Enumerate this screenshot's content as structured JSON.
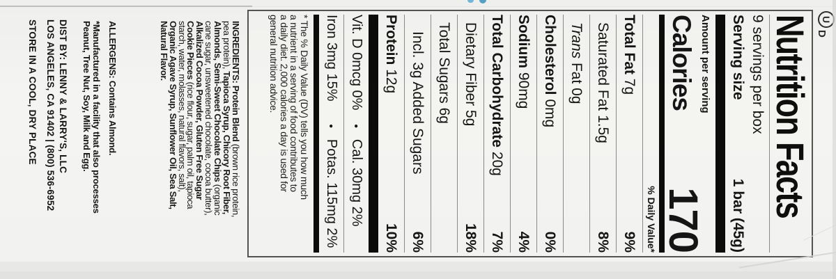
{
  "kosher": {
    "u": "U",
    "d": "D"
  },
  "panel": {
    "title": "Nutrition Facts",
    "servings": "9 servings per box",
    "serving_size_label": "Serving size",
    "serving_size_value": "1 bar (45g)",
    "amount_label": "Amount per serving",
    "calories_label": "Calories",
    "calories_value": "170",
    "dv_header": "% Daily Value*",
    "bullet": "•",
    "rows": [
      {
        "key": "total-fat",
        "indent": 0,
        "segments": [
          {
            "t": "Total Fat ",
            "b": true
          },
          {
            "t": "7g"
          }
        ],
        "dv": "9%"
      },
      {
        "key": "saturated-fat",
        "indent": 1,
        "segments": [
          {
            "t": "Saturated Fat 1.5g"
          }
        ],
        "dv": "8%"
      },
      {
        "key": "trans-fat",
        "indent": 1,
        "segments": [
          {
            "t": "Trans",
            "i": true
          },
          {
            "t": " Fat 0g"
          }
        ],
        "dv": ""
      },
      {
        "key": "cholesterol",
        "indent": 0,
        "segments": [
          {
            "t": "Cholesterol ",
            "b": true
          },
          {
            "t": "0mg"
          }
        ],
        "dv": "0%"
      },
      {
        "key": "sodium",
        "indent": 0,
        "segments": [
          {
            "t": "Sodium ",
            "b": true
          },
          {
            "t": "90mg"
          }
        ],
        "dv": "4%"
      },
      {
        "key": "total-carbohydrate",
        "indent": 0,
        "segments": [
          {
            "t": "Total Carbohydrate ",
            "b": true
          },
          {
            "t": "20g"
          }
        ],
        "dv": "7%"
      },
      {
        "key": "dietary-fiber",
        "indent": 1,
        "segments": [
          {
            "t": "Dietary Fiber 5g"
          }
        ],
        "dv": "18%"
      },
      {
        "key": "total-sugars",
        "indent": 1,
        "segments": [
          {
            "t": "Total Sugars 6g"
          }
        ],
        "dv": ""
      },
      {
        "key": "added-sugars",
        "indent": 2,
        "segments": [
          {
            "t": "Incl. 3g Added Sugars"
          }
        ],
        "dv": "6%"
      },
      {
        "key": "protein",
        "indent": 0,
        "segments": [
          {
            "t": "Protein ",
            "b": true
          },
          {
            "t": "12g"
          }
        ],
        "dv": "10%"
      }
    ],
    "micros": [
      {
        "left": "Vit. D 0mcg 0%",
        "right": "Cal. 30mg 2%"
      },
      {
        "left": "Iron 3mg 15%",
        "right": "Potas. 115mg 2%"
      }
    ],
    "footnote_lines": [
      "* The % Daily Value (DV) tells you how much",
      "a nutrient in a serving of food contributes to",
      "a daily diet. 2,000 calories a day is used for",
      "general nutrition advice."
    ]
  },
  "ingredients": {
    "lines": [
      [
        {
          "t": "INGREDIENTS: Protein Blend",
          "b": true
        },
        {
          "t": " (brown rice protein,"
        }
      ],
      [
        {
          "t": "pea protein), "
        },
        {
          "t": "Tapioca Syrup, Chicory Root Fiber,",
          "b": true
        }
      ],
      [
        {
          "t": "Almonds, Semi-Sweet Chocolate Chips",
          "b": true
        },
        {
          "t": " (organic"
        }
      ],
      [
        {
          "t": "cane sugar, unsweetened chocolate, cocoa butter),"
        }
      ],
      [
        {
          "t": "Alkalized Cocoa Powder, Gluten Free Sugar",
          "b": true
        }
      ],
      [
        {
          "t": "Cookie Pieces",
          "b": true
        },
        {
          "t": " (rice flour, sugar, palm oil, tapioca"
        }
      ],
      [
        {
          "t": "starch, water, molasses, natural flavors, salt),"
        }
      ],
      [
        {
          "t": "Organic Agave Syrup, Sunflower Oil, Sea Salt,",
          "b": true
        }
      ],
      [
        {
          "t": "Natural Flavor.",
          "b": true
        }
      ]
    ]
  },
  "allergens": {
    "text": "ALLERGENS: Contains Almond."
  },
  "facility": {
    "lines": [
      "*Manufactured in a facility that also processes",
      "Peanut, Tree Nut, Soy, Milk and Egg."
    ]
  },
  "distributor": {
    "lines": [
      "DIST BY: LENNY & LARRY'S, LLC",
      "LOS ANGELES, CA  91402  |  (800) 536-6952"
    ]
  },
  "storage": {
    "text": "STORE IN A COOL, DRY PLACE"
  },
  "colors": {
    "paper": "#f3f3f1",
    "bar": "#0c0c0a",
    "accent_blue": "#569fc4",
    "background": "#e8e8e6"
  }
}
